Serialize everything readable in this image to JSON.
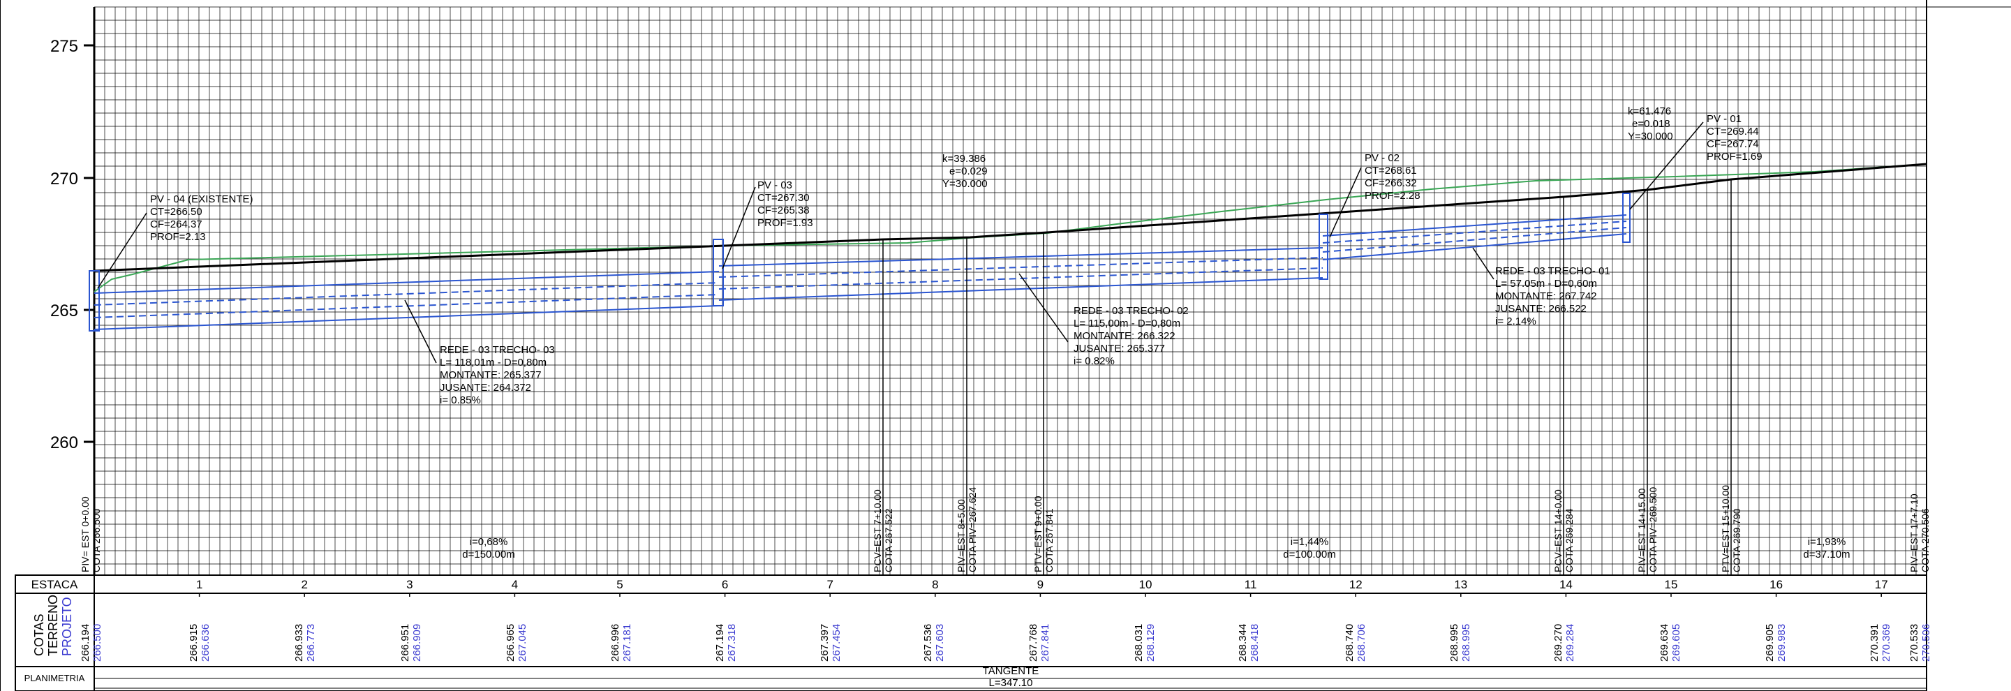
{
  "y_axis": {
    "ticks": [
      "275",
      "270",
      "265",
      "260"
    ]
  },
  "pv_labels": [
    {
      "lines": [
        "PV - 04 (EXISTENTE)",
        "CT=266.50",
        "CF=264.37",
        "PROF=2.13"
      ]
    },
    {
      "lines": [
        "PV - 03",
        "CT=267.30",
        "CF=265.38",
        "PROF=1.93"
      ]
    },
    {
      "lines": [
        "PV - 02",
        "CT=268.61",
        "CF=266.32",
        "PROF=2.28"
      ]
    },
    {
      "lines": [
        "PV - 01",
        "CT=269.44",
        "CF=267.74",
        "PROF=1.69"
      ]
    }
  ],
  "curve_labels": [
    {
      "lines": [
        "k=39.386",
        "e=0.029",
        "Y=30.000"
      ]
    },
    {
      "lines": [
        "k=61.476",
        "e=0.018",
        "Y=30.000"
      ]
    }
  ],
  "rede_labels": [
    {
      "lines": [
        "REDE - 03 TRECHO- 03",
        "L= 118,01m - D=0,80m",
        "MONTANTE: 265.377",
        "JUSANTE: 264.372",
        "i= 0.85%"
      ]
    },
    {
      "lines": [
        "REDE - 03 TRECHO- 02",
        "L= 115,00m - D=0,80m",
        "MONTANTE: 266.322",
        "JUSANTE: 265.377",
        "i= 0.82%"
      ]
    },
    {
      "lines": [
        "REDE - 03 TRECHO- 01",
        "L= 57.05m - D=0,60m",
        "MONTANTE: 267.742",
        "JUSANTE: 266.522",
        "i= 2.14%"
      ]
    }
  ],
  "vertical_labels": [
    {
      "l1": "PIV= EST 0+0.00",
      "l2": "COTA 266.500"
    },
    {
      "l1": "PCV=EST 7+10.00",
      "l2": "COTA 267.522"
    },
    {
      "l1": "PIV=EST 8+5.00",
      "l2": "COTA PIV=267.624"
    },
    {
      "l1": "PTV=EST 9+0.00",
      "l2": "COTA 267.841"
    },
    {
      "l1": "PCV=EST 14+0.00",
      "l2": "COTA 269.284"
    },
    {
      "l1": "PIV=EST 14+15.00",
      "l2": "COTA PIV=269.500"
    },
    {
      "l1": "PTV=EST 15+10.00",
      "l2": "COTA 269.790"
    },
    {
      "l1": "PIV=EST 17+7.10",
      "l2": "COTA 270.506"
    }
  ],
  "grade_labels": [
    {
      "i": "i=0,68%",
      "d": "d=150.00m"
    },
    {
      "i": "i=1,44%",
      "d": "d=100.00m"
    },
    {
      "i": "i=1,93%",
      "d": "d=37.10m"
    }
  ],
  "table": {
    "estaca_label": "ESTACA",
    "cotas_label": "COTAS",
    "terreno_label": "TERRENO",
    "projeto_label": "PROJETO",
    "planimetria_label": "PLANIMETRIA",
    "stations": [
      "1",
      "2",
      "3",
      "4",
      "5",
      "6",
      "7",
      "8",
      "9",
      "10",
      "11",
      "12",
      "13",
      "14",
      "15",
      "16",
      "17"
    ],
    "terreno": [
      "266.194",
      "266.915",
      "266.933",
      "266.951",
      "266.965",
      "266.996",
      "267.194",
      "267.397",
      "267.536",
      "267.768",
      "268.031",
      "268.344",
      "268.740",
      "268.995",
      "269.270",
      "269.634",
      "269.905",
      "270.391",
      "270.533"
    ],
    "projeto": [
      "266.500",
      "266.636",
      "266.773",
      "266.909",
      "267.045",
      "267.181",
      "267.318",
      "267.454",
      "267.603",
      "267.841",
      "268.129",
      "268.418",
      "268.706",
      "268.995",
      "269.284",
      "269.605",
      "269.983",
      "270.369",
      "270.506"
    ],
    "tangente_label": "TANGENTE",
    "tangente_length": "L=347.10"
  }
}
